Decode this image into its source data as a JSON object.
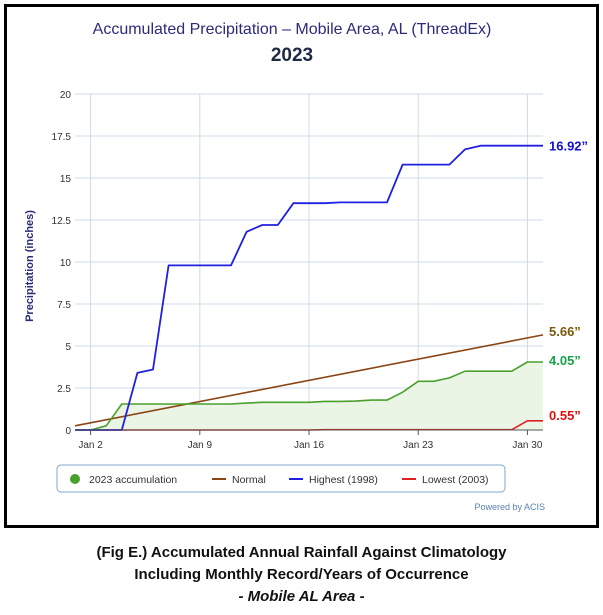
{
  "chart_data": {
    "type": "line",
    "title": "Accumulated Precipitation – Mobile Area, AL (ThreadEx)",
    "subtitle": "2023",
    "ylabel": "Precipitation (inches)",
    "xlabel": "",
    "xlim": [
      1,
      31
    ],
    "ylim": [
      0,
      20
    ],
    "y_ticks": [
      "0",
      "2.5",
      "5",
      "7.5",
      "10",
      "12.5",
      "15",
      "17.5",
      "20"
    ],
    "x_ticks": [
      {
        "day": 2,
        "label": "Jan 2"
      },
      {
        "day": 9,
        "label": "Jan 9"
      },
      {
        "day": 16,
        "label": "Jan 16"
      },
      {
        "day": 23,
        "label": "Jan 23"
      },
      {
        "day": 30,
        "label": "Jan 30"
      }
    ],
    "grid": true,
    "legend_position": "bottom",
    "credit": "Powered by ACIS",
    "series": [
      {
        "name": "2023 accumulation",
        "color": "#4aa02c",
        "fill": "#eaf5e6",
        "marker": "circle",
        "end_label": "4.05”",
        "end_label_color": "#16a34a",
        "x": [
          1,
          2,
          3,
          4,
          5,
          6,
          7,
          8,
          9,
          10,
          11,
          12,
          13,
          14,
          15,
          16,
          17,
          18,
          19,
          20,
          21,
          22,
          23,
          24,
          25,
          26,
          27,
          28,
          29,
          30,
          31
        ],
        "y": [
          0,
          0,
          0.25,
          1.55,
          1.55,
          1.55,
          1.55,
          1.55,
          1.55,
          1.55,
          1.55,
          1.6,
          1.65,
          1.65,
          1.65,
          1.65,
          1.7,
          1.7,
          1.72,
          1.78,
          1.78,
          2.25,
          2.9,
          2.9,
          3.1,
          3.5,
          3.5,
          3.5,
          3.5,
          4.05,
          4.05
        ]
      },
      {
        "name": "Normal",
        "color": "#8b4513",
        "end_label": "5.66”",
        "end_label_color": "#7a5a0a",
        "x": [
          1,
          31
        ],
        "y": [
          0.25,
          5.66
        ]
      },
      {
        "name": "Highest (1998)",
        "color": "#2020e0",
        "end_label": "16.92”",
        "end_label_color": "#1010d0",
        "x": [
          1,
          2,
          3,
          4,
          5,
          6,
          7,
          8,
          9,
          10,
          11,
          12,
          13,
          14,
          15,
          16,
          17,
          18,
          19,
          20,
          21,
          22,
          23,
          24,
          25,
          26,
          27,
          28,
          29,
          30,
          31
        ],
        "y": [
          0,
          0,
          0,
          0,
          3.4,
          3.6,
          9.8,
          9.8,
          9.8,
          9.8,
          9.8,
          11.8,
          12.2,
          12.2,
          13.5,
          13.5,
          13.5,
          13.55,
          13.55,
          13.55,
          13.55,
          15.8,
          15.8,
          15.8,
          15.8,
          16.7,
          16.92,
          16.92,
          16.92,
          16.92,
          16.92
        ]
      },
      {
        "name": "Lowest (2003)",
        "color": "#e02020",
        "end_label": "0.55”",
        "end_label_color": "#e01010",
        "x": [
          1,
          2,
          3,
          4,
          5,
          6,
          7,
          8,
          9,
          10,
          11,
          12,
          13,
          14,
          15,
          16,
          17,
          18,
          19,
          20,
          21,
          22,
          23,
          24,
          25,
          26,
          27,
          28,
          29,
          30,
          31
        ],
        "y": [
          0,
          0,
          0,
          0,
          0,
          0,
          0,
          0,
          0,
          0,
          0,
          0,
          0,
          0,
          0,
          0,
          0.02,
          0.02,
          0.02,
          0.02,
          0.02,
          0.02,
          0.02,
          0.02,
          0.02,
          0.02,
          0.02,
          0.02,
          0.02,
          0.55,
          0.55
        ]
      }
    ]
  },
  "caption": {
    "line1": "(Fig E.) Accumulated Annual Rainfall Against  Climatology",
    "line2": "Including Monthly Record/Years of Occurrence",
    "line3": "- Mobile AL Area -"
  }
}
